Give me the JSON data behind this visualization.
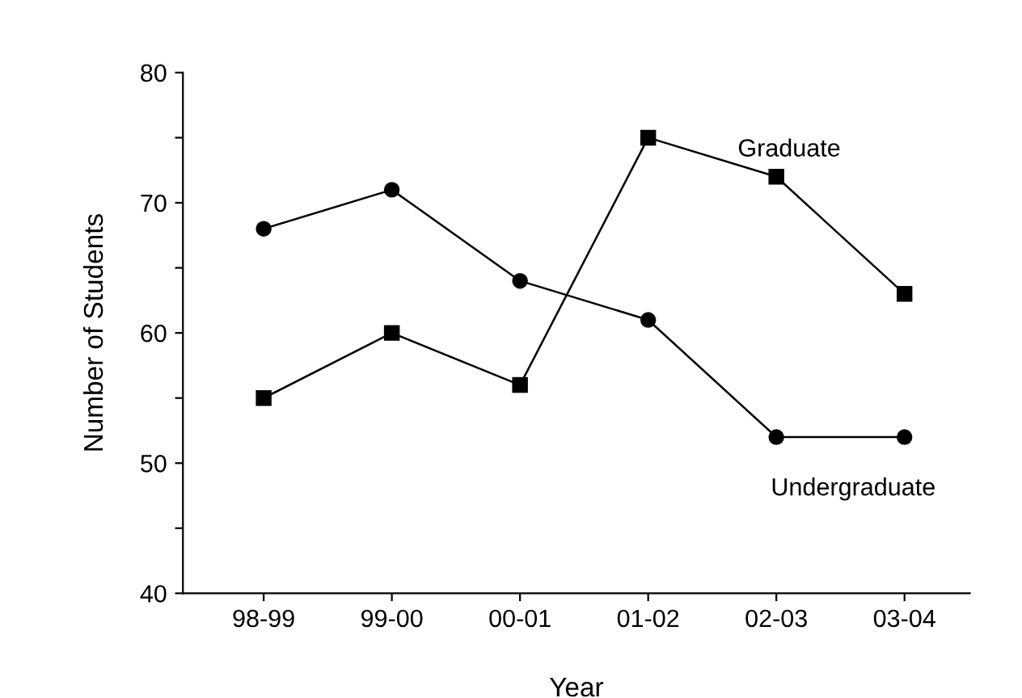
{
  "chart_data": {
    "type": "line",
    "xlabel": "Year",
    "ylabel": "Number of Students",
    "categories": [
      "98-99",
      "99-00",
      "00-01",
      "01-02",
      "02-03",
      "03-04"
    ],
    "series": [
      {
        "name": "Undergraduate",
        "color": "#000000",
        "marker": "circle",
        "values": [
          68,
          71,
          64,
          61,
          52,
          52
        ]
      },
      {
        "name": "Graduate",
        "color": "#000000",
        "marker": "square",
        "values": [
          55,
          60,
          56,
          75,
          72,
          63
        ]
      }
    ],
    "ylim": [
      40,
      80
    ],
    "yticks": [
      40,
      {
        "value": 45,
        "label": null
      },
      50,
      {
        "value": 55,
        "label": null
      },
      60,
      {
        "value": 65,
        "label": null
      },
      70,
      {
        "value": 75,
        "label": null
      },
      80
    ],
    "grid": false,
    "legend": false,
    "line_style": "solid"
  }
}
